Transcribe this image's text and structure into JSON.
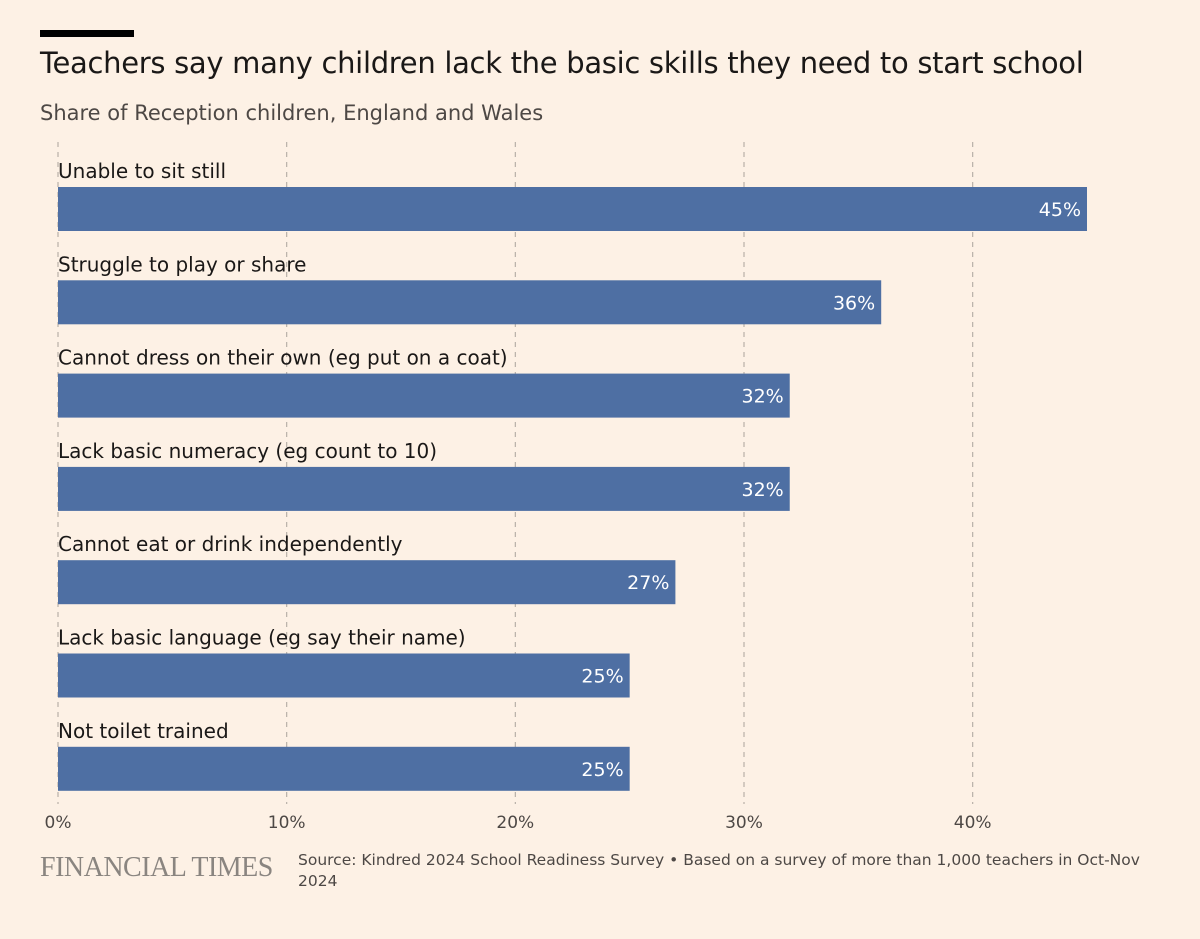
{
  "header": {
    "title": "Teachers say many children lack the basic skills they need to start school",
    "subtitle": "Share of Reception children, England and Wales"
  },
  "footer": {
    "brand": "FINANCIAL TIMES",
    "source": "Source: Kindred 2024 School Readiness Survey • Based on a survey of more than 1,000 teachers in Oct-Nov 2024"
  },
  "colors": {
    "background": "#fdf1e5",
    "bar": "#4e6fa3",
    "grid": "#b8b0a8"
  },
  "chart_data": {
    "type": "bar",
    "orientation": "horizontal",
    "title": "Teachers say many children lack the basic skills they need to start school",
    "subtitle": "Share of Reception children, England and Wales",
    "categories": [
      "Unable to sit still",
      "Struggle to play or share",
      "Cannot dress on their own (eg put on a coat)",
      "Lack basic numeracy (eg count to 10)",
      "Cannot eat or drink independently",
      "Lack basic language (eg say their name)",
      "Not toilet trained"
    ],
    "values": [
      45,
      36,
      32,
      32,
      27,
      25,
      25
    ],
    "value_labels": [
      "45%",
      "36%",
      "32%",
      "32%",
      "27%",
      "25%",
      "25%"
    ],
    "xlim": [
      0,
      45
    ],
    "ticks": [
      0,
      10,
      20,
      30,
      40
    ],
    "tick_labels": [
      "0%",
      "10%",
      "20%",
      "30%",
      "40%"
    ],
    "grid": true,
    "grid_style": "dashed vertical"
  }
}
